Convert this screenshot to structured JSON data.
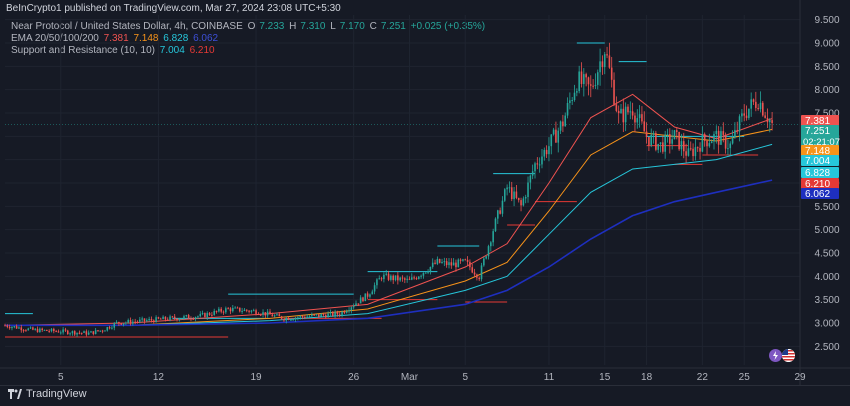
{
  "header": {
    "published": "BeInCrypto1 published on TradingView.com, Mar 27, 2024 23:08 UTC+5:30"
  },
  "legend": {
    "symbol": "Near Protocol / United States Dollar, 4h, COINBASE",
    "ohlc": [
      {
        "key": "O",
        "value": "7.233"
      },
      {
        "key": "H",
        "value": "7.310"
      },
      {
        "key": "L",
        "value": "7.170"
      },
      {
        "key": "C",
        "value": "7.251"
      }
    ],
    "change": "+0.025 (+0.35%)",
    "ema_label": "EMA 20/50/100/200",
    "ema_values": [
      "7.381",
      "7.148",
      "6.828",
      "6.062"
    ],
    "sr_label": "Support and Resistance (10, 10)",
    "sr_values": [
      "7.004",
      "6.210"
    ]
  },
  "colors": {
    "background": "#161a25",
    "up": "#26a69a",
    "down": "#ef5350",
    "ema20": "#ef5350",
    "ema50": "#f7931a",
    "ema100": "#26c6da",
    "ema200": "#1e2fbf",
    "resistance": "#26c6da",
    "support": "#e53935"
  },
  "footer": {
    "brand": "TradingView",
    "icons": [
      "lightning-icon",
      "us-flag-icon"
    ]
  },
  "chart_data": {
    "type": "candlestick",
    "title": "Near Protocol / United States Dollar, 4h, COINBASE",
    "ylim": [
      2.1,
      9.6
    ],
    "y_ticks": [
      "9.500",
      "9.000",
      "8.500",
      "8.000",
      "7.500",
      "7.000",
      "6.500",
      "6.000",
      "5.500",
      "5.000",
      "4.500",
      "4.000",
      "3.500",
      "3.000",
      "2.500"
    ],
    "x_ticks": [
      "5",
      "12",
      "19",
      "26",
      "Mar",
      "5",
      "11",
      "15",
      "18",
      "22",
      "25",
      "29"
    ],
    "x_range_days": "Feb 1 – Mar 29, 2024",
    "current_price": "7.251",
    "countdown": "02:21:07",
    "price_labels": [
      {
        "value": "7.381",
        "color": "#ef5350",
        "name": "ema20"
      },
      {
        "value": "7.251",
        "color": "#26a69a",
        "name": "last"
      },
      {
        "value": "7.148",
        "color": "#f7931a",
        "name": "ema50"
      },
      {
        "value": "7.004",
        "color": "#26c6da",
        "name": "resistance"
      },
      {
        "value": "6.828",
        "color": "#26c6da",
        "name": "ema100"
      },
      {
        "value": "6.210",
        "color": "#e53935",
        "name": "support"
      },
      {
        "value": "6.062",
        "color": "#1e2fbf",
        "name": "ema200"
      }
    ],
    "price_path": [
      [
        "Feb 1",
        2.95
      ],
      [
        "Feb 3",
        2.85
      ],
      [
        "Feb 5",
        2.82
      ],
      [
        "Feb 7",
        2.78
      ],
      [
        "Feb 8",
        2.85
      ],
      [
        "Feb 9",
        3.0
      ],
      [
        "Feb 11",
        3.05
      ],
      [
        "Feb 13",
        3.1
      ],
      [
        "Feb 15",
        3.15
      ],
      [
        "Feb 17",
        3.3
      ],
      [
        "Feb 19",
        3.25
      ],
      [
        "Feb 21",
        3.1
      ],
      [
        "Feb 23",
        3.15
      ],
      [
        "Feb 25",
        3.2
      ],
      [
        "Feb 27",
        3.6
      ],
      [
        "Feb 28",
        4.0
      ],
      [
        "Mar 1",
        3.9
      ],
      [
        "Mar 2",
        4.1
      ],
      [
        "Mar 3",
        4.3
      ],
      [
        "Mar 4",
        4.25
      ],
      [
        "Mar 5",
        4.3
      ],
      [
        "Mar 6",
        4.0
      ],
      [
        "Mar 7",
        5.0
      ],
      [
        "Mar 8",
        5.9
      ],
      [
        "Mar 9",
        5.5
      ],
      [
        "Mar 10",
        6.4
      ],
      [
        "Mar 11",
        6.8
      ],
      [
        "Mar 12",
        7.3
      ],
      [
        "Mar 13",
        8.2
      ],
      [
        "Mar 14",
        8.0
      ],
      [
        "Mar 15",
        8.9
      ],
      [
        "Mar 16",
        7.4
      ],
      [
        "Mar 17",
        7.6
      ],
      [
        "Mar 18",
        7.0
      ],
      [
        "Mar 19",
        6.8
      ],
      [
        "Mar 20",
        7.0
      ],
      [
        "Mar 21",
        6.6
      ],
      [
        "Mar 22",
        6.9
      ],
      [
        "Mar 23",
        7.0
      ],
      [
        "Mar 24",
        6.8
      ],
      [
        "Mar 25",
        7.5
      ],
      [
        "Mar 26",
        7.8
      ],
      [
        "Mar 27",
        7.25
      ]
    ],
    "ema_series": [
      {
        "name": "EMA 20",
        "color": "#ef5350",
        "values": [
          [
            "Feb 1",
            2.95
          ],
          [
            "Feb 10",
            3.0
          ],
          [
            "Feb 20",
            3.2
          ],
          [
            "Feb 27",
            3.4
          ],
          [
            "Mar 5",
            4.2
          ],
          [
            "Mar 8",
            4.7
          ],
          [
            "Mar 11",
            6.0
          ],
          [
            "Mar 14",
            7.4
          ],
          [
            "Mar 17",
            7.9
          ],
          [
            "Mar 20",
            7.2
          ],
          [
            "Mar 23",
            6.95
          ],
          [
            "Mar 27",
            7.381
          ]
        ]
      },
      {
        "name": "EMA 50",
        "color": "#f7931a",
        "values": [
          [
            "Feb 1",
            2.95
          ],
          [
            "Feb 10",
            2.95
          ],
          [
            "Feb 20",
            3.1
          ],
          [
            "Feb 27",
            3.3
          ],
          [
            "Mar 5",
            3.9
          ],
          [
            "Mar 8",
            4.3
          ],
          [
            "Mar 11",
            5.4
          ],
          [
            "Mar 14",
            6.6
          ],
          [
            "Mar 17",
            7.1
          ],
          [
            "Mar 20",
            7.0
          ],
          [
            "Mar 23",
            6.9
          ],
          [
            "Mar 27",
            7.148
          ]
        ]
      },
      {
        "name": "EMA 100",
        "color": "#26c6da",
        "values": [
          [
            "Feb 1",
            2.95
          ],
          [
            "Feb 10",
            2.95
          ],
          [
            "Feb 20",
            3.05
          ],
          [
            "Feb 27",
            3.2
          ],
          [
            "Mar 5",
            3.7
          ],
          [
            "Mar 8",
            4.0
          ],
          [
            "Mar 11",
            4.9
          ],
          [
            "Mar 14",
            5.8
          ],
          [
            "Mar 17",
            6.3
          ],
          [
            "Mar 20",
            6.4
          ],
          [
            "Mar 23",
            6.5
          ],
          [
            "Mar 27",
            6.828
          ]
        ]
      },
      {
        "name": "EMA 200",
        "color": "#1e2fbf",
        "values": [
          [
            "Feb 1",
            2.95
          ],
          [
            "Feb 10",
            2.95
          ],
          [
            "Feb 20",
            3.0
          ],
          [
            "Feb 27",
            3.1
          ],
          [
            "Mar 5",
            3.4
          ],
          [
            "Mar 8",
            3.7
          ],
          [
            "Mar 11",
            4.2
          ],
          [
            "Mar 14",
            4.8
          ],
          [
            "Mar 17",
            5.3
          ],
          [
            "Mar 20",
            5.6
          ],
          [
            "Mar 23",
            5.8
          ],
          [
            "Mar 27",
            6.062
          ]
        ]
      }
    ],
    "resistance_levels": [
      {
        "from": "Feb 1",
        "to": "Feb 3",
        "value": 3.2
      },
      {
        "from": "Feb 1",
        "to": "Feb 9",
        "value": 2.95
      },
      {
        "from": "Feb 13",
        "to": "Feb 20",
        "value": 3.1
      },
      {
        "from": "Feb 17",
        "to": "Feb 26",
        "value": 3.62
      },
      {
        "from": "Feb 27",
        "to": "Mar 3",
        "value": 4.1
      },
      {
        "from": "Mar 3",
        "to": "Mar 6",
        "value": 4.65
      },
      {
        "from": "Mar 7",
        "to": "Mar 10",
        "value": 6.2
      },
      {
        "from": "Mar 13",
        "to": "Mar 15",
        "value": 9.0
      },
      {
        "from": "Mar 16",
        "to": "Mar 18",
        "value": 8.6
      },
      {
        "from": "Mar 18",
        "to": "Mar 25",
        "value": 7.0
      }
    ],
    "support_levels": [
      {
        "from": "Feb 1",
        "to": "Feb 17",
        "value": 2.7
      },
      {
        "from": "Feb 21",
        "to": "Feb 28",
        "value": 3.1
      },
      {
        "from": "Feb 27",
        "to": "Mar 3",
        "value": 3.5
      },
      {
        "from": "Mar 5",
        "to": "Mar 8",
        "value": 3.45
      },
      {
        "from": "Mar 8",
        "to": "Mar 10",
        "value": 5.1
      },
      {
        "from": "Mar 10",
        "to": "Mar 13",
        "value": 5.6
      },
      {
        "from": "Mar 18",
        "to": "Mar 21",
        "value": 6.8
      },
      {
        "from": "Mar 20",
        "to": "Mar 22",
        "value": 6.4
      },
      {
        "from": "Mar 22",
        "to": "Mar 26",
        "value": 6.6
      }
    ]
  }
}
